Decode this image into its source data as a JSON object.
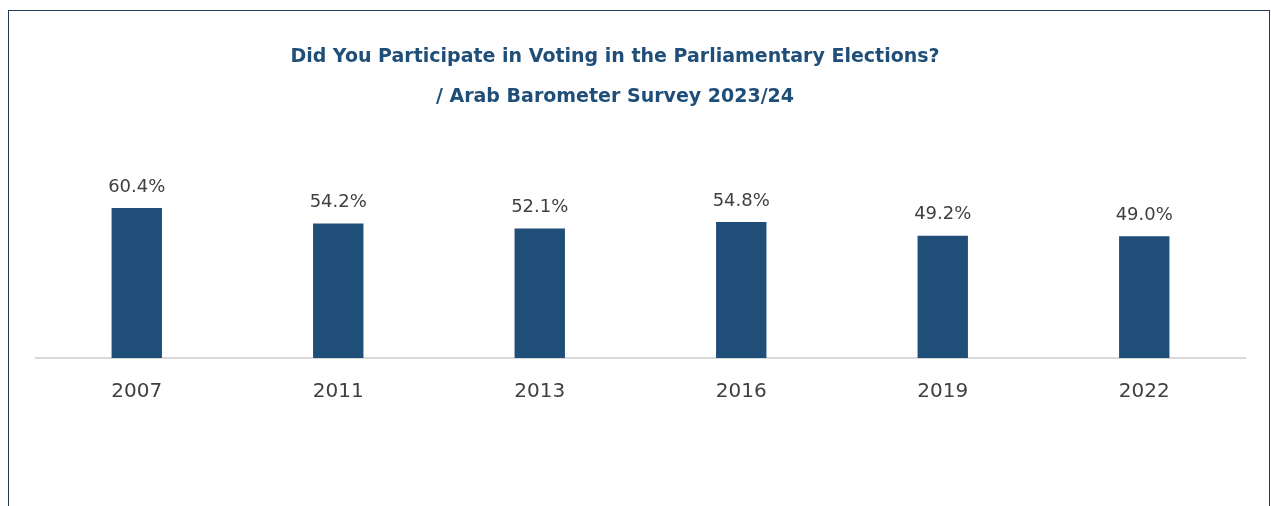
{
  "chart_data": {
    "type": "bar",
    "title": "Did You Participate in Voting in the Parliamentary Elections?",
    "subtitle": "/ Arab Barometer Survey 2023/24",
    "categories": [
      "2007",
      "2011",
      "2013",
      "2016",
      "2019",
      "2022"
    ],
    "values": [
      60.4,
      54.2,
      52.1,
      54.8,
      49.2,
      49.0
    ],
    "value_labels": [
      "60.4%",
      "54.2%",
      "52.1%",
      "54.8%",
      "49.2%",
      "49.0%"
    ],
    "color": "#1f4e79",
    "grid": false,
    "legend": false,
    "tick_labels": "x"
  }
}
